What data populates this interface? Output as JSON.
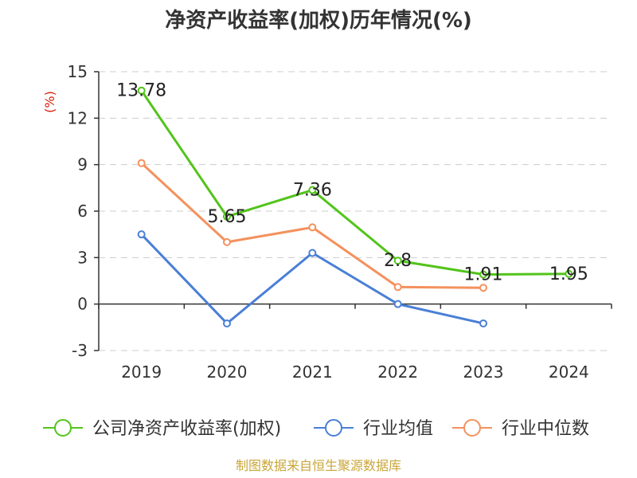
{
  "chart_data": {
    "type": "line",
    "title": "净资产收益率(加权)历年情况(%)",
    "ylabel": "(%)",
    "xlabel": "",
    "categories": [
      "2019",
      "2020",
      "2021",
      "2022",
      "2023",
      "2024"
    ],
    "ylim": [
      -3,
      15
    ],
    "yticks": [
      -3,
      0,
      3,
      6,
      9,
      12,
      15
    ],
    "grid": true,
    "legend_position": "bottom",
    "series": [
      {
        "name": "公司净资产收益率(加权)",
        "color": "#52c41a",
        "values": [
          13.78,
          5.65,
          7.36,
          2.8,
          1.91,
          1.95
        ],
        "labels": [
          "13.78",
          "5.65",
          "7.36",
          "2.8",
          "1.91",
          "1.95"
        ]
      },
      {
        "name": "行业均值",
        "color": "#4a7fd6",
        "values": [
          4.5,
          -1.25,
          3.3,
          0.0,
          -1.25,
          null
        ]
      },
      {
        "name": "行业中位数",
        "color": "#f4915d",
        "values": [
          9.1,
          4.0,
          4.95,
          1.1,
          1.05,
          null
        ]
      }
    ],
    "source": "制图数据来自恒生聚源数据库"
  }
}
